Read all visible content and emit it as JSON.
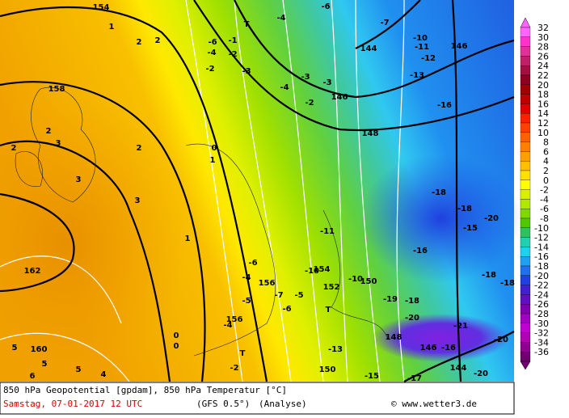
{
  "map": {
    "labels": [
      "154",
      "158",
      "162",
      "160",
      "156",
      "152",
      "150",
      "148",
      "146",
      "146",
      "144",
      "146",
      "148",
      "150",
      "144",
      "154",
      "156",
      "-4",
      "-6",
      "-7",
      "-10",
      "-11",
      "-12",
      "-13",
      "-16",
      "-18",
      "-18",
      "-20",
      "-15",
      "-16",
      "-18",
      "-18",
      "-19",
      "-18",
      "-20",
      "-21",
      "-20",
      "-16",
      "-13",
      "-15",
      "-20",
      "-17",
      "-11",
      "-10",
      "-10",
      "-6",
      "-4",
      "-7",
      "-5",
      "-5",
      "-6",
      "-4",
      "-2",
      "0",
      "0",
      "5",
      "5",
      "5",
      "6",
      "4",
      "1",
      "2",
      "2",
      "2",
      "2",
      "3",
      "3",
      "3",
      "2",
      "1",
      "0",
      "1",
      "-6",
      "-4",
      "-2",
      "-1",
      "-2",
      "-3",
      "-4",
      "-3",
      "-3",
      "-2",
      "T",
      "T",
      "T"
    ]
  },
  "colorbar": {
    "ticks": [
      32,
      30,
      28,
      26,
      24,
      22,
      20,
      18,
      16,
      14,
      12,
      10,
      8,
      6,
      4,
      2,
      0,
      -2,
      -4,
      -6,
      -8,
      -10,
      -12,
      -14,
      -16,
      -18,
      -20,
      -22,
      -24,
      -26,
      -28,
      -30,
      -32,
      -34,
      -36
    ],
    "colors": [
      "#ff66ff",
      "#ff33cc",
      "#e0309a",
      "#c0206a",
      "#a01040",
      "#900020",
      "#a00000",
      "#c00000",
      "#e00000",
      "#ff2000",
      "#ff4000",
      "#ff6000",
      "#ff8000",
      "#ffa000",
      "#ffc000",
      "#ffe000",
      "#ffff00",
      "#d8f000",
      "#b0e800",
      "#80d800",
      "#50c800",
      "#30c060",
      "#20d0b0",
      "#20d0f0",
      "#20a0f0",
      "#2070f0",
      "#2040e0",
      "#4020d0",
      "#6010c0",
      "#8000b0",
      "#a000c0",
      "#c000d0",
      "#b000b0",
      "#900090",
      "#700070"
    ]
  },
  "footer": {
    "line1": "850 hPa Geopotential [gpdam], 850 hPa Temperatur [°C]",
    "date": "Samstag, 07-01-2017  12 UTC",
    "model": "(GFS 0.5°)",
    "run": "(Analyse)",
    "credit": "© www.wetter3.de"
  }
}
